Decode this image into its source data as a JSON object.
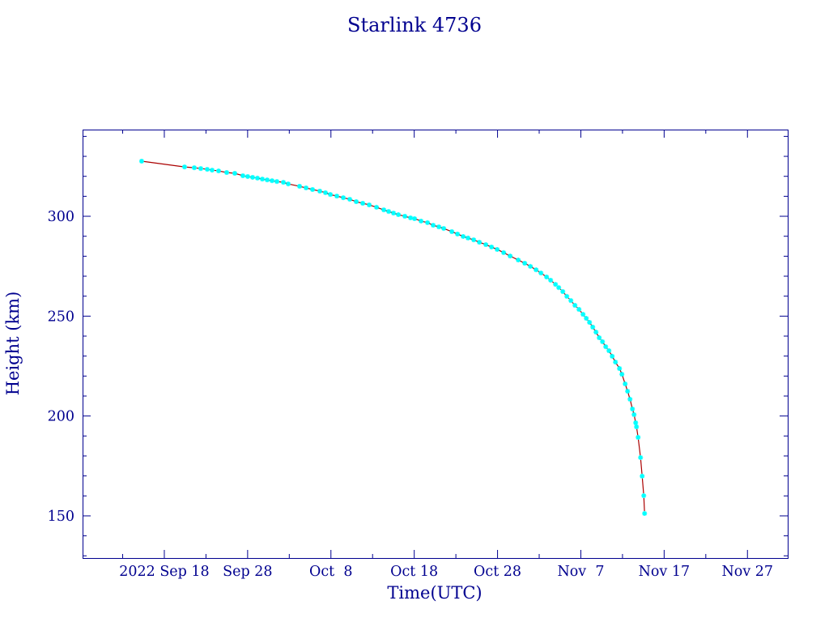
{
  "chart_data": {
    "type": "line",
    "title": "Starlink 4736",
    "xlabel": "Time(UTC)",
    "ylabel": "Height (km)",
    "x_scale": "date",
    "xlim": [
      "2022-09-08T04:30",
      "2022-12-01T20:00"
    ],
    "ylim": [
      128.9,
      343.4
    ],
    "grid": false,
    "x_ticks": [
      {
        "date": "2022-09-18",
        "label": "2022 Sep 18"
      },
      {
        "date": "2022-09-28",
        "label": "Sep 28"
      },
      {
        "date": "2022-10-08",
        "label": "Oct  8"
      },
      {
        "date": "2022-10-18",
        "label": "Oct 18"
      },
      {
        "date": "2022-10-28",
        "label": "Oct 28"
      },
      {
        "date": "2022-11-07",
        "label": "Nov  7"
      },
      {
        "date": "2022-11-17",
        "label": "Nov 17"
      },
      {
        "date": "2022-11-27",
        "label": "Nov 27"
      }
    ],
    "y_ticks": [
      150,
      200,
      250,
      300
    ],
    "colors": {
      "axes": "#00008f",
      "text": "#00008f",
      "line": "#aa0000",
      "marker": "#00ffff",
      "background": "#ffffff"
    },
    "series": [
      {
        "marker": "asterisk",
        "x": [
          "2022-09-15T06:40",
          "2022-09-20T10:20",
          "2022-09-21T14:20",
          "2022-09-22T09:00",
          "2022-09-23T03:40",
          "2022-09-23T17:40",
          "2022-09-24T12:20",
          "2022-09-25T11:40",
          "2022-09-26T11:00",
          "2022-09-27T10:20",
          "2022-09-28T00:20",
          "2022-09-28T14:20",
          "2022-09-29T04:20",
          "2022-09-29T18:20",
          "2022-09-30T08:20",
          "2022-09-30T22:20",
          "2022-10-01T12:20",
          "2022-10-02T07:00",
          "2022-10-02T21:00",
          "2022-10-04T05:40",
          "2022-10-05T00:20",
          "2022-10-05T19:00",
          "2022-10-06T16:00",
          "2022-10-07T08:20",
          "2022-10-07T22:20",
          "2022-10-08T17:00",
          "2022-10-09T11:40",
          "2022-10-10T06:20",
          "2022-10-11T01:00",
          "2022-10-11T19:40",
          "2022-10-12T14:20",
          "2022-10-13T11:20",
          "2022-10-14T08:20",
          "2022-10-14T22:20",
          "2022-10-15T12:20",
          "2022-10-16T02:20",
          "2022-10-16T21:00",
          "2022-10-17T13:20",
          "2022-10-18T01:00",
          "2022-10-18T19:40",
          "2022-10-19T14:20",
          "2022-10-20T06:40",
          "2022-10-20T23:00",
          "2022-10-21T13:00",
          "2022-10-22T12:20",
          "2022-10-23T04:40",
          "2022-10-23T21:00",
          "2022-10-24T11:00",
          "2022-10-25T03:20",
          "2022-10-25T19:40",
          "2022-10-26T14:20",
          "2022-10-27T06:40",
          "2022-10-27T23:00",
          "2022-10-28T17:40",
          "2022-10-29T12:20",
          "2022-10-30T11:40",
          "2022-10-31T06:20",
          "2022-10-31T22:40",
          "2022-11-01T15:00",
          "2022-11-02T05:00",
          "2022-11-02T21:20",
          "2022-11-03T09:00",
          "2022-11-03T23:00",
          "2022-11-04T08:20",
          "2022-11-04T20:00",
          "2022-11-05T07:40",
          "2022-11-05T19:20",
          "2022-11-06T07:00",
          "2022-11-06T18:40",
          "2022-11-07T06:20",
          "2022-11-07T15:40",
          "2022-11-08T01:00",
          "2022-11-08T10:20",
          "2022-11-08T19:40",
          "2022-11-09T05:00",
          "2022-11-09T14:20",
          "2022-11-09T23:40",
          "2022-11-10T09:00",
          "2022-11-10T18:20",
          "2022-11-11T03:40",
          "2022-11-11T15:20",
          "2022-11-11T22:20",
          "2022-11-12T07:40",
          "2022-11-12T14:40",
          "2022-11-12T21:40",
          "2022-11-13T04:40",
          "2022-11-13T09:20",
          "2022-11-13T14:00",
          "2022-11-13T16:20",
          "2022-11-13T21:00",
          "2022-11-14T04:00",
          "2022-11-14T08:40",
          "2022-11-14T13:20",
          "2022-11-14T15:40"
        ],
        "y": [
          327.6,
          324.7,
          324.3,
          323.9,
          323.5,
          323.1,
          322.7,
          321.9,
          321.5,
          320.3,
          319.9,
          319.5,
          319.1,
          318.6,
          318.2,
          317.8,
          317.4,
          317.0,
          316.2,
          315.0,
          314.2,
          313.4,
          312.6,
          311.8,
          310.9,
          310.1,
          309.3,
          308.5,
          307.3,
          306.5,
          305.7,
          304.5,
          303.2,
          302.4,
          301.6,
          300.8,
          300.0,
          299.2,
          298.8,
          297.6,
          296.8,
          295.5,
          294.7,
          293.9,
          292.3,
          291.1,
          289.9,
          289.1,
          288.2,
          287.0,
          285.8,
          284.6,
          283.4,
          281.8,
          280.1,
          278.1,
          276.5,
          274.9,
          273.2,
          271.6,
          269.6,
          268.0,
          265.9,
          264.3,
          262.3,
          259.9,
          257.8,
          255.4,
          253.4,
          250.9,
          248.9,
          246.9,
          244.5,
          242.0,
          239.2,
          237.2,
          234.7,
          232.7,
          229.9,
          227.0,
          223.8,
          220.9,
          216.1,
          212.4,
          208.4,
          203.5,
          200.7,
          196.6,
          194.6,
          189.3,
          179.2,
          169.9,
          160.1,
          151.2
        ]
      }
    ]
  }
}
